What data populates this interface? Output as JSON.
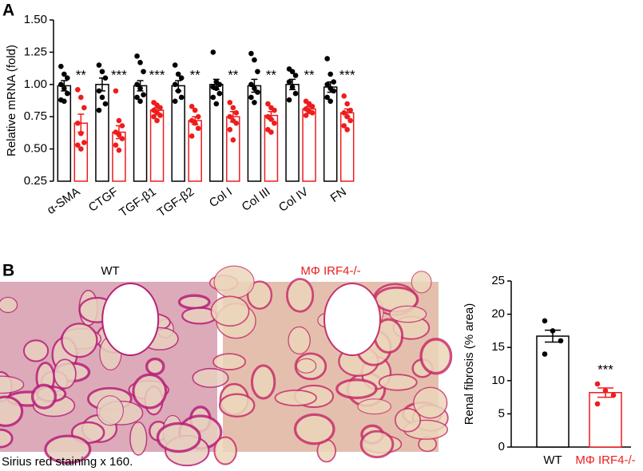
{
  "panel_labels": [
    "A",
    "B"
  ],
  "images": {
    "labels": [
      "WT",
      "MΦ IRF4-/-"
    ],
    "caption": "Sirius red staining x 160."
  },
  "chart_data": [
    {
      "type": "grouped_bar",
      "ylabel": "Relative mRNA (fold)",
      "ylim": [
        0.25,
        1.5
      ],
      "yticks": [
        0.25,
        {
          "value": 0.5,
          "label": "0.50"
        },
        0.75,
        {
          "value": 1.0,
          "label": "1.00"
        },
        1.25,
        {
          "value": 1.5,
          "label": "1.50"
        }
      ],
      "categories": [
        "α-SMA",
        "CTGF",
        "TGF-β1",
        "TGF-β2",
        "Col I",
        "Col III",
        "Col IV",
        "FN"
      ],
      "annotations": [
        "**",
        "***",
        "***",
        "**",
        "**",
        "**",
        "**",
        "***"
      ],
      "series": [
        {
          "color": "#000000",
          "values": [
            0.99,
            1.0,
            0.99,
            0.99,
            1.0,
            0.99,
            1.0,
            0.98
          ],
          "errors": [
            0.04,
            0.05,
            0.04,
            0.04,
            0.04,
            0.05,
            0.04,
            0.04
          ],
          "points": [
            [
              1.14,
              1.08,
              1.05,
              1.0,
              0.97,
              0.93,
              0.88,
              0.87
            ],
            [
              1.15,
              1.1,
              1.05,
              0.95,
              0.9,
              0.85,
              0.8
            ],
            [
              1.22,
              1.17,
              1.1,
              1.0,
              0.97,
              0.92,
              0.9,
              0.87
            ],
            [
              1.15,
              1.08,
              1.05,
              1.0,
              0.95,
              0.9,
              0.87
            ],
            [
              1.25,
              1.02,
              1.0,
              0.98,
              0.97,
              0.93,
              0.9,
              0.85
            ],
            [
              1.24,
              1.19,
              1.1,
              1.0,
              0.97,
              0.94,
              0.9,
              0.86
            ],
            [
              1.12,
              1.1,
              1.07,
              1.02,
              0.98,
              0.93,
              0.88
            ],
            [
              1.2,
              1.08,
              1.02,
              1.0,
              0.97,
              0.95,
              0.9,
              0.87
            ]
          ]
        },
        {
          "color": "#ee1c1c",
          "values": [
            0.7,
            0.63,
            0.8,
            0.72,
            0.75,
            0.76,
            0.81,
            0.78
          ],
          "errors": [
            0.07,
            0.05,
            0.02,
            0.03,
            0.04,
            0.03,
            0.02,
            0.03
          ],
          "points": [
            [
              0.96,
              0.9,
              0.82,
              0.7,
              0.62,
              0.55,
              0.53,
              0.5
            ],
            [
              0.95,
              0.72,
              0.68,
              0.63,
              0.61,
              0.58,
              0.53,
              0.49
            ],
            [
              0.86,
              0.84,
              0.82,
              0.8,
              0.78,
              0.76,
              0.75,
              0.72
            ],
            [
              0.83,
              0.8,
              0.75,
              0.72,
              0.7,
              0.66,
              0.6
            ],
            [
              0.86,
              0.82,
              0.78,
              0.75,
              0.72,
              0.7,
              0.65,
              0.57
            ],
            [
              0.85,
              0.82,
              0.8,
              0.75,
              0.73,
              0.7,
              0.65,
              0.63
            ],
            [
              0.87,
              0.85,
              0.83,
              0.81,
              0.79,
              0.78,
              0.76
            ],
            [
              0.91,
              0.85,
              0.8,
              0.78,
              0.75,
              0.72,
              0.68,
              0.65
            ]
          ]
        }
      ]
    },
    {
      "type": "bar",
      "ylabel": "Renal fibrosis (% area)",
      "ylim": [
        0,
        25
      ],
      "yticks": [
        0,
        5,
        10,
        15,
        20,
        25
      ],
      "categories": [
        "WT",
        "MΦ IRF4-/-"
      ],
      "colors": [
        "#000000",
        "#ee1c1c"
      ],
      "values": [
        16.7,
        8.2
      ],
      "errors": [
        0.9,
        0.7
      ],
      "points": [
        [
          19,
          17.5,
          16,
          14
        ],
        [
          9.5,
          8.5,
          7.8,
          6.5
        ]
      ],
      "annotations": [
        null,
        "***"
      ]
    }
  ]
}
